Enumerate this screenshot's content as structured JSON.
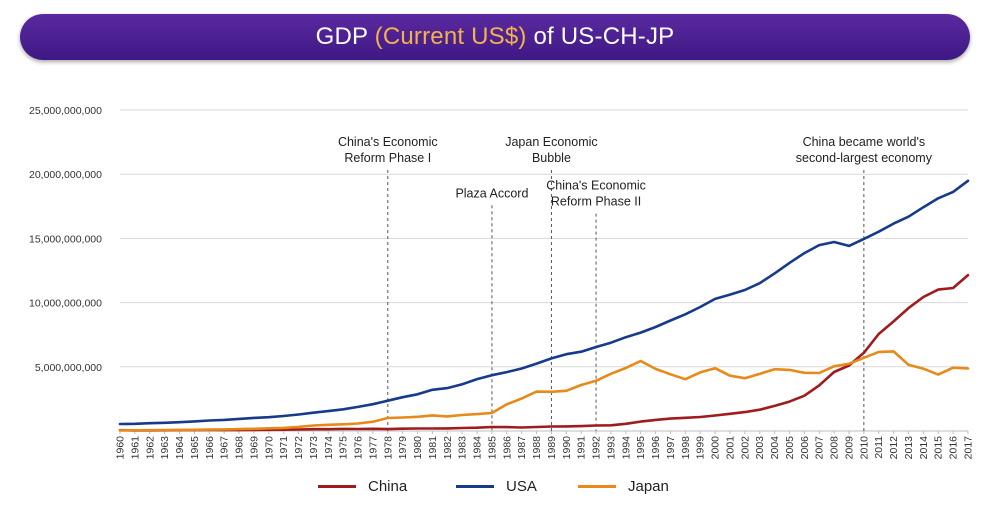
{
  "title": {
    "prefix": "GDP ",
    "accent": "(Current US$)",
    "suffix": " of US-CH-JP"
  },
  "colors": {
    "title_bg": "#4a1f93",
    "title_accent": "#f3b24a",
    "China": "#a01c1c",
    "USA": "#163a8c",
    "Japan": "#e8891a",
    "grid": "#d9d9d9"
  },
  "chart_data": {
    "type": "line",
    "x": [
      1960,
      1961,
      1962,
      1963,
      1964,
      1965,
      1966,
      1967,
      1968,
      1969,
      1970,
      1971,
      1972,
      1973,
      1974,
      1975,
      1976,
      1977,
      1978,
      1979,
      1980,
      1981,
      1982,
      1983,
      1984,
      1985,
      1986,
      1987,
      1988,
      1989,
      1990,
      1991,
      1992,
      1993,
      1994,
      1995,
      1996,
      1997,
      1998,
      1999,
      2000,
      2001,
      2002,
      2003,
      2004,
      2005,
      2006,
      2007,
      2008,
      2009,
      2010,
      2011,
      2012,
      2013,
      2014,
      2015,
      2016,
      2017
    ],
    "ylim": [
      0,
      25000000000
    ],
    "yticks": [
      {
        "value": 5000000000,
        "label": "5,000,000,000"
      },
      {
        "value": 10000000000,
        "label": "10,000,000,000"
      },
      {
        "value": 15000000000,
        "label": "15,000,000,000"
      },
      {
        "value": 20000000000,
        "label": "20,000,000,000"
      },
      {
        "value": 25000000000,
        "label": "25,000,000,000"
      }
    ],
    "grid": true,
    "legend_position": "bottom",
    "series": [
      {
        "name": "China",
        "color": "#a01c1c",
        "values": [
          60000000,
          50000000,
          47000000,
          51000000,
          60000000,
          70000000,
          76000000,
          73000000,
          71000000,
          80000000,
          92000000,
          100000000,
          114000000,
          139000000,
          144000000,
          163000000,
          154000000,
          175000000,
          149000000,
          178000000,
          191000000,
          196000000,
          205000000,
          230000000,
          260000000,
          309000000,
          300000000,
          273000000,
          312000000,
          348000000,
          361000000,
          383000000,
          427000000,
          444000000,
          564000000,
          734000000,
          863000000,
          962000000,
          1029000000,
          1094000000,
          1211000000,
          1339000000,
          1471000000,
          1660000000,
          1955000000,
          2286000000,
          2752000000,
          3550000000,
          4594000000,
          5102000000,
          6087000000,
          7552000000,
          8532000000,
          9570000000,
          10439000000,
          11016000000,
          11138000000,
          12143000000
        ]
      },
      {
        "name": "USA",
        "color": "#163a8c",
        "values": [
          543000000,
          563000000,
          605000000,
          638000000,
          686000000,
          744000000,
          815000000,
          861000000,
          943000000,
          1019000000,
          1075000000,
          1167000000,
          1282000000,
          1428000000,
          1549000000,
          1688000000,
          1877000000,
          2086000000,
          2357000000,
          2632000000,
          2862000000,
          3210000000,
          3345000000,
          3638000000,
          4040000000,
          4347000000,
          4590000000,
          4870000000,
          5253000000,
          5658000000,
          5980000000,
          6174000000,
          6539000000,
          6879000000,
          7309000000,
          7664000000,
          8100000000,
          8609000000,
          9089000000,
          9661000000,
          10285000000,
          10622000000,
          10978000000,
          11511000000,
          12275000000,
          13094000000,
          13856000000,
          14478000000,
          14719000000,
          14419000000,
          14964000000,
          15518000000,
          16155000000,
          16692000000,
          17428000000,
          18121000000,
          18625000000,
          19485000000
        ]
      },
      {
        "name": "Japan",
        "color": "#e8891a",
        "values": [
          44000000,
          53000000,
          61000000,
          70000000,
          82000000,
          91000000,
          106000000,
          123000000,
          146000000,
          173000000,
          213000000,
          240000000,
          318000000,
          432000000,
          480000000,
          521000000,
          586000000,
          721000000,
          1014000000,
          1055000000,
          1105000000,
          1218000000,
          1134000000,
          1243000000,
          1318000000,
          1399000000,
          2078000000,
          2532000000,
          3072000000,
          3054000000,
          3133000000,
          3584000000,
          3909000000,
          4454000000,
          4907000000,
          5449000000,
          4833000000,
          4414000000,
          4032000000,
          4562000000,
          4888000000,
          4304000000,
          4115000000,
          4445000000,
          4815000000,
          4755000000,
          4530000000,
          4515000000,
          5037000000,
          5231000000,
          5700000000,
          6157000000,
          6203000000,
          5156000000,
          4850000000,
          4389000000,
          4927000000,
          4872000000
        ]
      }
    ],
    "annotations": [
      {
        "year": 1978,
        "label_lines": [
          "China's Economic",
          "Reform Phase I"
        ],
        "label_y": 22200000000
      },
      {
        "year": 1985,
        "label_lines": [
          "Plaza Accord"
        ],
        "label_y": 18200000000
      },
      {
        "year": 1989,
        "label_lines": [
          "Japan Economic",
          "Bubble"
        ],
        "label_y": 22200000000
      },
      {
        "year": 1992,
        "label_lines": [
          "China's Economic",
          "Reform Phase II"
        ],
        "label_y": 18800000000
      },
      {
        "year": 2010,
        "label_lines": [
          "China became world's",
          "second-largest economy"
        ],
        "label_y": 22200000000
      }
    ]
  },
  "legend": [
    {
      "name": "China",
      "color": "#a01c1c"
    },
    {
      "name": "USA",
      "color": "#163a8c"
    },
    {
      "name": "Japan",
      "color": "#e8891a"
    }
  ]
}
